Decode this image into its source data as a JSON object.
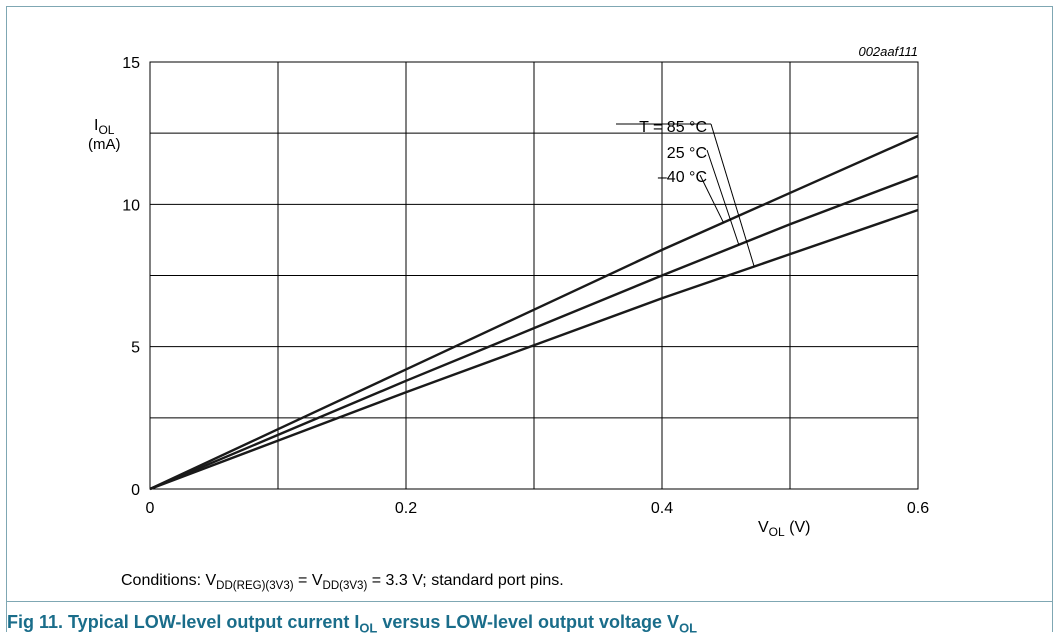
{
  "chart_data": {
    "type": "line",
    "chart_id": "002aaf111",
    "xlabel": {
      "main": "V",
      "sub": "OL",
      "unit": " (V)"
    },
    "ylabel": {
      "main": "I",
      "sub": "OL",
      "unit": "(mA)"
    },
    "xlim": [
      0,
      0.6
    ],
    "ylim": [
      0,
      15
    ],
    "x_ticks": [
      0,
      0.2,
      0.4,
      0.6
    ],
    "x_tick_labels": [
      "0",
      "0.2",
      "0.4",
      "0.6"
    ],
    "y_ticks": [
      0,
      5,
      10,
      15
    ],
    "y_tick_labels": [
      "0",
      "5",
      "10",
      "15"
    ],
    "grid": {
      "x_step": 0.1,
      "y_step": 2.5
    },
    "series": [
      {
        "name": "–40 °C",
        "x": [
          0,
          0.1,
          0.2,
          0.3,
          0.4,
          0.5,
          0.6
        ],
        "y": [
          0,
          2.1,
          4.2,
          6.3,
          8.4,
          10.4,
          12.4
        ]
      },
      {
        "name": "25 °C",
        "x": [
          0,
          0.1,
          0.2,
          0.3,
          0.4,
          0.5,
          0.6
        ],
        "y": [
          0,
          1.9,
          3.8,
          5.65,
          7.5,
          9.3,
          11.0
        ]
      },
      {
        "name": "T = 85 °C",
        "x": [
          0,
          0.1,
          0.2,
          0.3,
          0.4,
          0.5,
          0.6
        ],
        "y": [
          0,
          1.7,
          3.4,
          5.05,
          6.7,
          8.25,
          9.8
        ]
      }
    ],
    "annotations": [
      {
        "text": "T = 85 °C",
        "series": 2,
        "x_anchor": 0.472
      },
      {
        "text": "25 °C",
        "series": 1,
        "x_anchor": 0.46
      },
      {
        "text": "–40 °C",
        "series": 0,
        "x_anchor": 0.448
      }
    ]
  },
  "conditions": {
    "prefix": "Conditions: V",
    "sub1": "DD(REG)(3V3)",
    "mid": " = V",
    "sub2": "DD(3V3)",
    "suffix": " = 3.3 V; standard port pins."
  },
  "caption": {
    "prefix": "Fig 11.   Typical LOW-level output current I",
    "sub1": "OL",
    "mid": " versus LOW-level output voltage V",
    "sub2": "OL"
  }
}
